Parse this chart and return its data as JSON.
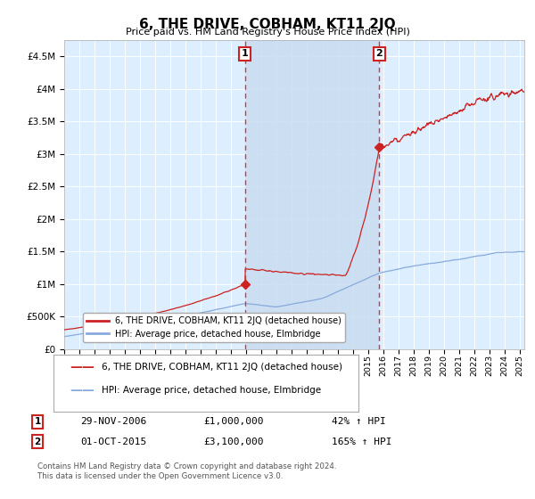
{
  "title": "6, THE DRIVE, COBHAM, KT11 2JQ",
  "subtitle": "Price paid vs. HM Land Registry's House Price Index (HPI)",
  "hpi_label": "HPI: Average price, detached house, Elmbridge",
  "price_label": "6, THE DRIVE, COBHAM, KT11 2JQ (detached house)",
  "annotation1": {
    "num": "1",
    "date": "29-NOV-2006",
    "price": "£1,000,000",
    "hpi": "42% ↑ HPI",
    "x_year": 2006.91
  },
  "annotation2": {
    "num": "2",
    "date": "01-OCT-2015",
    "price": "£3,100,000",
    "hpi": "165% ↑ HPI",
    "x_year": 2015.75
  },
  "sale1_year": 2006.91,
  "sale1_price": 1000000,
  "sale2_year": 2015.75,
  "sale2_price": 3100000,
  "ylim": [
    0,
    4750000
  ],
  "xlim_start": 1995.3,
  "xlim_end": 2025.3,
  "background_color": "#ffffff",
  "plot_bg_color": "#ddeeff",
  "shade_color": "#c8dcf0",
  "grid_color": "#ffffff",
  "hpi_color": "#88aadd",
  "price_color": "#cc2222",
  "vline_color": "#dd3333",
  "footnote": "Contains HM Land Registry data © Crown copyright and database right 2024.\nThis data is licensed under the Open Government Licence v3.0."
}
